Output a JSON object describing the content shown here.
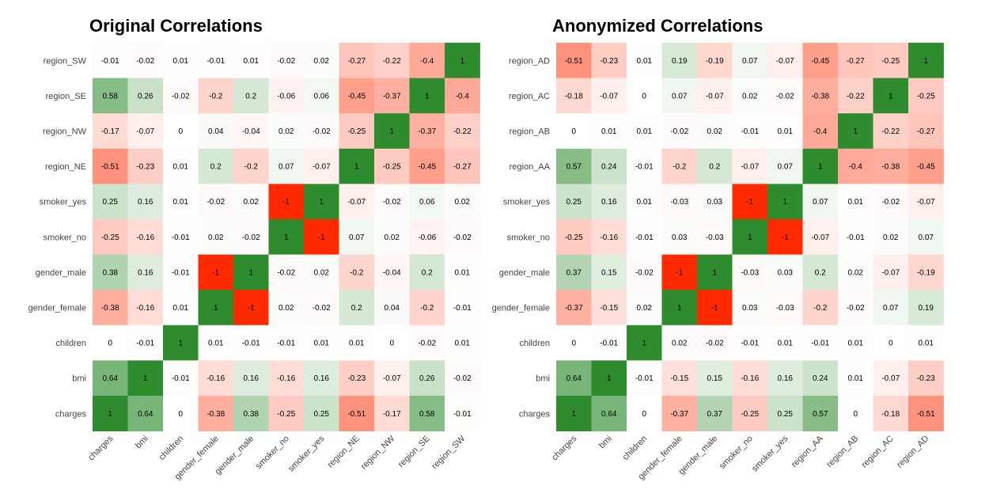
{
  "colors": {
    "low": "#ff2a00",
    "mid": "#ffffff",
    "high": "#2e8b2e"
  },
  "chart_data": [
    {
      "type": "heatmap",
      "title": "Original Correlations",
      "x_categories": [
        "charges",
        "bmi",
        "children",
        "gender_female",
        "gender_male",
        "smoker_no",
        "smoker_yes",
        "region_NE",
        "region_NW",
        "region_SE",
        "region_SW"
      ],
      "y_categories": [
        "charges",
        "bmi",
        "children",
        "gender_female",
        "gender_male",
        "smoker_no",
        "smoker_yes",
        "region_NE",
        "region_NW",
        "region_SE",
        "region_SW"
      ],
      "rows_top_to_bottom": [
        [
          "region_SW",
          [
            -0.01,
            -0.02,
            0.01,
            -0.01,
            0.01,
            -0.02,
            0.02,
            -0.27,
            -0.22,
            -0.4,
            1
          ]
        ],
        [
          "region_SE",
          [
            0.58,
            0.26,
            -0.02,
            -0.2,
            0.2,
            -0.06,
            0.06,
            -0.45,
            -0.37,
            1,
            -0.4
          ]
        ],
        [
          "region_NW",
          [
            -0.17,
            -0.07,
            0,
            0.04,
            -0.04,
            0.02,
            -0.02,
            -0.25,
            1,
            -0.37,
            -0.22
          ]
        ],
        [
          "region_NE",
          [
            -0.51,
            -0.23,
            0.01,
            0.2,
            -0.2,
            0.07,
            -0.07,
            1,
            -0.25,
            -0.45,
            -0.27
          ]
        ],
        [
          "smoker_yes",
          [
            0.25,
            0.16,
            0.01,
            -0.02,
            0.02,
            -1,
            1,
            -0.07,
            -0.02,
            0.06,
            0.02
          ]
        ],
        [
          "smoker_no",
          [
            -0.25,
            -0.16,
            -0.01,
            0.02,
            -0.02,
            1,
            -1,
            0.07,
            0.02,
            -0.06,
            -0.02
          ]
        ],
        [
          "gender_male",
          [
            0.38,
            0.16,
            -0.01,
            -1,
            1,
            -0.02,
            0.02,
            -0.2,
            -0.04,
            0.2,
            0.01
          ]
        ],
        [
          "gender_female",
          [
            -0.38,
            -0.16,
            0.01,
            1,
            -1,
            0.02,
            -0.02,
            0.2,
            0.04,
            -0.2,
            -0.01
          ]
        ],
        [
          "children",
          [
            0,
            -0.01,
            1,
            0.01,
            -0.01,
            -0.01,
            0.01,
            0.01,
            0,
            -0.02,
            0.01
          ]
        ],
        [
          "bmi",
          [
            0.64,
            1,
            -0.01,
            -0.16,
            0.16,
            -0.16,
            0.16,
            -0.23,
            -0.07,
            0.26,
            -0.02
          ]
        ],
        [
          "charges",
          [
            1,
            0.64,
            0,
            -0.38,
            0.38,
            -0.25,
            0.25,
            -0.51,
            -0.17,
            0.58,
            -0.01
          ]
        ]
      ]
    },
    {
      "type": "heatmap",
      "title": "Anonymized Correlations",
      "x_categories": [
        "charges",
        "bmi",
        "children",
        "gender_female",
        "gender_male",
        "smoker_no",
        "smoker_yes",
        "region_AA",
        "region_AB",
        "region_AC",
        "region_AD"
      ],
      "y_categories": [
        "charges",
        "bmi",
        "children",
        "gender_female",
        "gender_male",
        "smoker_no",
        "smoker_yes",
        "region_AA",
        "region_AB",
        "region_AC",
        "region_AD"
      ],
      "rows_top_to_bottom": [
        [
          "region_AD",
          [
            -0.51,
            -0.23,
            0.01,
            0.19,
            -0.19,
            0.07,
            -0.07,
            -0.45,
            -0.27,
            -0.25,
            1
          ]
        ],
        [
          "region_AC",
          [
            -0.18,
            -0.07,
            0,
            0.07,
            -0.07,
            0.02,
            -0.02,
            -0.38,
            -0.22,
            1,
            -0.25
          ]
        ],
        [
          "region_AB",
          [
            0,
            0.01,
            0.01,
            -0.02,
            0.02,
            -0.01,
            0.01,
            -0.4,
            1,
            -0.22,
            -0.27
          ]
        ],
        [
          "region_AA",
          [
            0.57,
            0.24,
            -0.01,
            -0.2,
            0.2,
            -0.07,
            0.07,
            1,
            -0.4,
            -0.38,
            -0.45
          ]
        ],
        [
          "smoker_yes",
          [
            0.25,
            0.16,
            0.01,
            -0.03,
            0.03,
            -1,
            1,
            0.07,
            0.01,
            -0.02,
            -0.07
          ]
        ],
        [
          "smoker_no",
          [
            -0.25,
            -0.16,
            -0.01,
            0.03,
            -0.03,
            1,
            -1,
            -0.07,
            -0.01,
            0.02,
            0.07
          ]
        ],
        [
          "gender_male",
          [
            0.37,
            0.15,
            -0.02,
            -1,
            1,
            -0.03,
            0.03,
            0.2,
            0.02,
            -0.07,
            -0.19
          ]
        ],
        [
          "gender_female",
          [
            -0.37,
            -0.15,
            0.02,
            1,
            -1,
            0.03,
            -0.03,
            -0.2,
            -0.02,
            0.07,
            0.19
          ]
        ],
        [
          "children",
          [
            0,
            -0.01,
            1,
            0.02,
            -0.02,
            -0.01,
            0.01,
            -0.01,
            0.01,
            0,
            0.01
          ]
        ],
        [
          "bmi",
          [
            0.64,
            1,
            -0.01,
            -0.15,
            0.15,
            -0.16,
            0.16,
            0.24,
            0.01,
            -0.07,
            -0.23
          ]
        ],
        [
          "charges",
          [
            1,
            0.64,
            0,
            -0.37,
            0.37,
            -0.25,
            0.25,
            0.57,
            0,
            -0.18,
            -0.51
          ]
        ]
      ]
    }
  ]
}
